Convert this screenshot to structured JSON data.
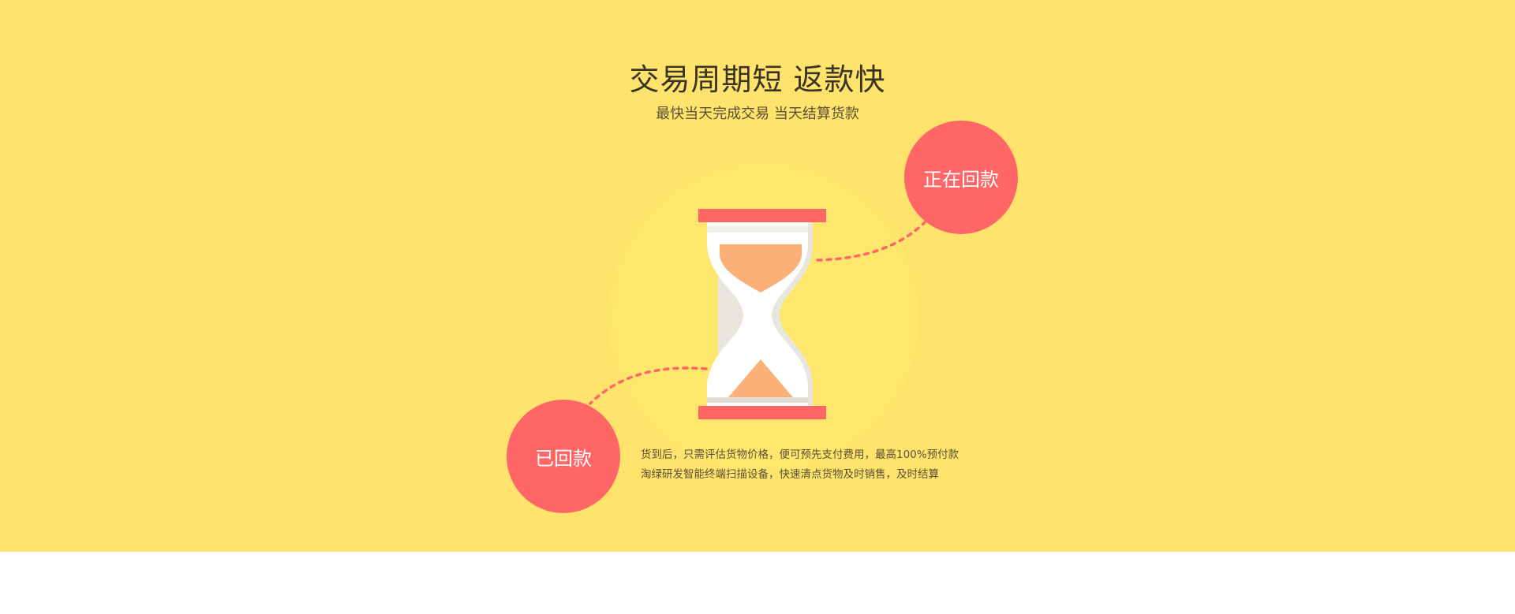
{
  "header": {
    "title": "交易周期短 返款快",
    "subtitle": "最快当天完成交易 当天结算货款"
  },
  "status": {
    "returning_label": "正在回款",
    "returned_label": "已回款"
  },
  "description": {
    "line1": "货到后，只需评估货物价格，便可预先支付费用，最高100%预付款",
    "line2": "淘绿研发智能终端扫描设备，快速清点货物及时销售，及时结算"
  },
  "colors": {
    "background": "#ffe36c",
    "accent": "#ff6767",
    "sand": "#fbb077"
  },
  "icons": {
    "hourglass": "hourglass-icon"
  }
}
